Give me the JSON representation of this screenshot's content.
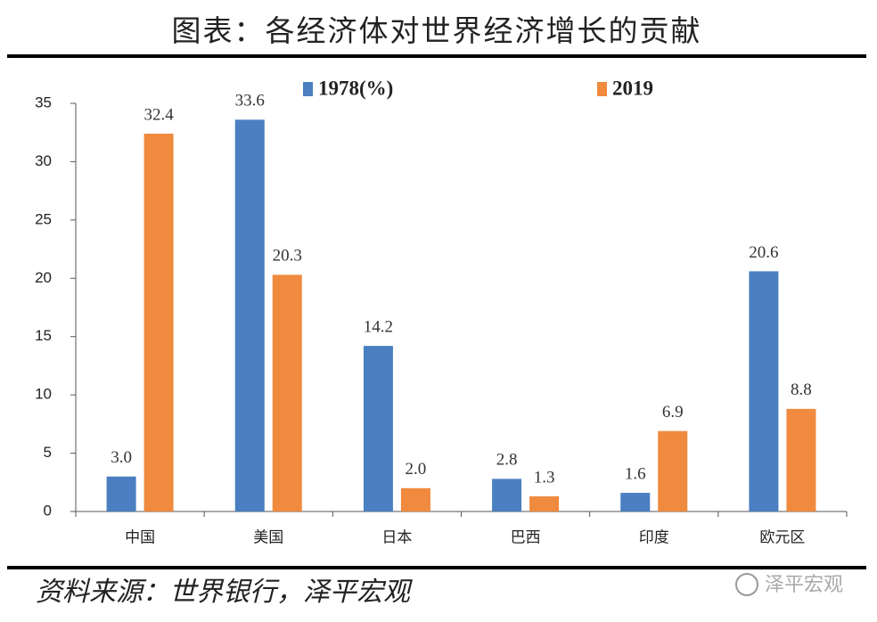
{
  "chart_data": {
    "type": "bar",
    "title": "图表：各经济体对世界经济增长的贡献",
    "categories": [
      "中国",
      "美国",
      "日本",
      "巴西",
      "印度",
      "欧元区"
    ],
    "series": [
      {
        "name": "1978(%)",
        "color": "#4a7fc1",
        "values": [
          3.0,
          33.6,
          14.2,
          2.8,
          1.6,
          20.6
        ],
        "value_labels": [
          "3.0",
          "33.6",
          "14.2",
          "2.8",
          "1.6",
          "20.6"
        ]
      },
      {
        "name": "2019",
        "color": "#ef8a3e",
        "values": [
          32.4,
          20.3,
          2.0,
          1.3,
          6.9,
          8.8
        ],
        "value_labels": [
          "32.4",
          "20.3",
          "2.0",
          "1.3",
          "6.9",
          "8.8"
        ]
      }
    ],
    "ylim": [
      0,
      35
    ],
    "yticks": [
      0,
      5,
      10,
      15,
      20,
      25,
      30,
      35
    ],
    "grid": false,
    "legend": "top",
    "source": "资料来源：世界银行，泽平宏观",
    "watermark": "泽平宏观"
  }
}
